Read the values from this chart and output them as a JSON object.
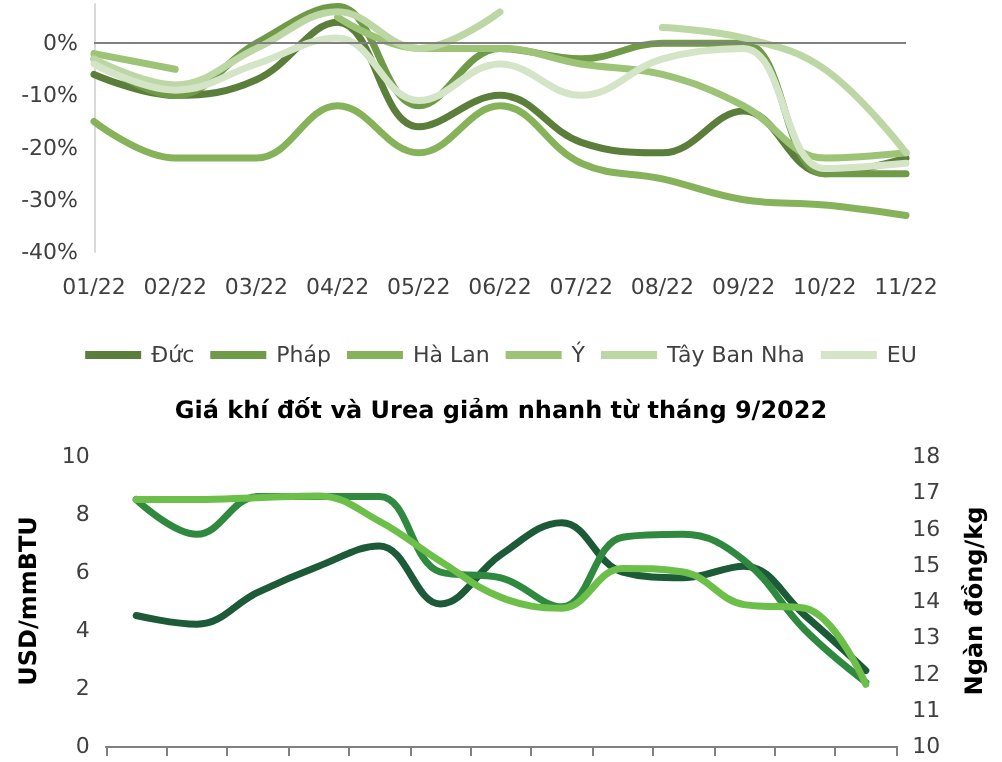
{
  "chart_data": [
    {
      "type": "line",
      "categories": [
        "01/22",
        "02/22",
        "03/22",
        "04/22",
        "05/22",
        "06/22",
        "07/22",
        "08/22",
        "09/22",
        "10/22",
        "11/22"
      ],
      "series": [
        {
          "name": "Đức",
          "color": "#5b7f3a",
          "values": [
            -6,
            -10,
            -7,
            4,
            -16,
            -10,
            -19,
            -21,
            -13,
            -25,
            -22
          ]
        },
        {
          "name": "Pháp",
          "color": "#6f9a48",
          "values": [
            -3,
            -10,
            0,
            7,
            -12,
            -1,
            -3,
            0,
            0,
            -25,
            -25
          ]
        },
        {
          "name": "Hà Lan",
          "color": "#86b35a",
          "values": [
            -15,
            -22,
            -22,
            -12,
            -21,
            -12,
            -23,
            -26,
            -30,
            -31,
            -33
          ]
        },
        {
          "name": "Ý",
          "color": "#9dc476",
          "values": [
            -2,
            -5,
            null,
            5,
            -1,
            -1,
            -4,
            -6,
            -12,
            -22,
            -21
          ]
        },
        {
          "name": "Tây Ban Nha",
          "color": "#bcd6a4",
          "values": [
            -3,
            -8,
            -1,
            6,
            -1,
            6,
            null,
            3,
            1,
            -5,
            -21
          ]
        },
        {
          "name": "EU",
          "color": "#d4e4c6",
          "values": [
            -4,
            -9,
            -4,
            1,
            -11,
            -4,
            -10,
            -3,
            -1,
            -24,
            -23
          ]
        }
      ],
      "ylim": [
        -40,
        7.5
      ],
      "yticks": [
        {
          "value": -40,
          "label": "-40%"
        },
        {
          "value": -30,
          "label": "-30%"
        },
        {
          "value": -20,
          "label": "-20%"
        },
        {
          "value": -10,
          "label": "-10%"
        },
        {
          "value": 0,
          "label": "0%"
        }
      ],
      "ref_lines": [
        {
          "axis": "y",
          "value": 0,
          "color": "#808080"
        }
      ],
      "legend": "bottom",
      "grid": false,
      "marker": "none",
      "line_style": "solid"
    },
    {
      "type": "line",
      "title": "Giá khí đốt và Urea giảm nhanh từ tháng 9/2022",
      "ylabel": "USD/mmBTU",
      "y2label": "Ngàn đồng/kg",
      "categories": [
        null,
        null,
        null,
        null,
        null,
        null,
        null,
        null,
        null,
        null,
        null,
        null,
        null
      ],
      "series": [
        {
          "color": "#1d5a37",
          "values": [
            4.5,
            4.2,
            5.3,
            6.2,
            6.9,
            4.9,
            6.6,
            7.7,
            6.0,
            5.8,
            6.2,
            4.5,
            2.6
          ]
        },
        {
          "color": "#2f8a3f",
          "values": [
            8.5,
            7.3,
            8.6,
            8.6,
            8.6,
            6.0,
            5.8,
            4.8,
            7.2,
            7.3,
            6.4,
            4.0,
            2.2
          ]
        },
        {
          "color": "#6cc04a",
          "axis": "y2",
          "values": [
            16.8,
            16.8,
            16.85,
            16.9,
            16.2,
            15.1,
            14.1,
            13.8,
            14.9,
            14.8,
            13.9,
            13.8,
            11.7
          ]
        }
      ],
      "ylim": [
        0,
        10
      ],
      "yticks": [
        0,
        2,
        4,
        6,
        8,
        10
      ],
      "y2lim": [
        10,
        18
      ],
      "y2ticks": [
        10,
        11,
        12,
        13,
        14,
        15,
        16,
        17,
        18
      ],
      "tick_labels": "y",
      "grid": false,
      "marker": "none",
      "line_style": "solid"
    }
  ]
}
